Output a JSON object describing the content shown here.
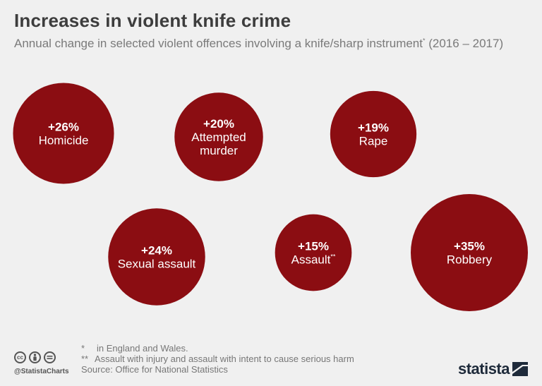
{
  "header": {
    "title": "Increases in violent knife crime",
    "subtitle": "Annual change in selected violent offences involving a knife/sharp instrument",
    "subtitle_mark": "*",
    "subtitle_period": " (2016 – 2017)"
  },
  "colors": {
    "bubble": "#8b0d12",
    "background": "#f0f0f0"
  },
  "chart_data": {
    "type": "bubble",
    "title": "Increases in violent knife crime",
    "unit": "% annual change",
    "series": [
      {
        "label": "Homicide",
        "value": 26,
        "display": "+26%"
      },
      {
        "label": "Attempted murder",
        "value": 20,
        "display": "+20%"
      },
      {
        "label": "Rape",
        "value": 19,
        "display": "+19%"
      },
      {
        "label": "Sexual assault",
        "value": 24,
        "display": "+24%"
      },
      {
        "label": "Assault",
        "value": 15,
        "display": "+15%",
        "mark": "**"
      },
      {
        "label": "Robbery",
        "value": 35,
        "display": "+35%"
      }
    ]
  },
  "footer": {
    "note1_mark": "*",
    "note1": "in England and Wales.",
    "note2_mark": "**",
    "note2": "Assault with injury and assault with intent to cause serious harm",
    "source": "Source: Office for National Statistics",
    "handle": "@StatistaCharts",
    "logo": "statista",
    "cc_icons": [
      "cc",
      "by",
      "nd"
    ]
  }
}
